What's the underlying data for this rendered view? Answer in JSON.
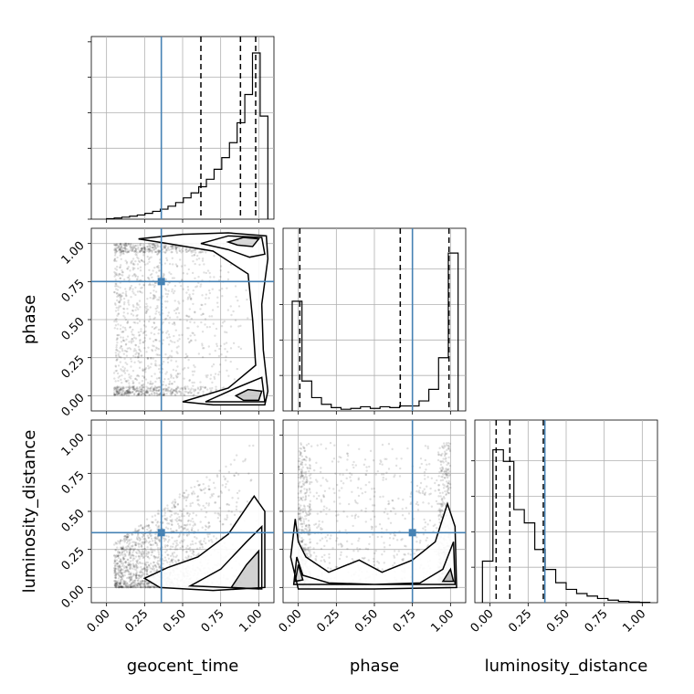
{
  "chart_data": {
    "type": "corner",
    "parameters": [
      "geocent_time",
      "phase",
      "luminosity_distance"
    ],
    "truths": {
      "geocent_time": 0.36,
      "phase": 0.75,
      "luminosity_distance": 0.36
    },
    "truth_color": "#4682b4",
    "axis_range": [
      -0.1,
      1.1
    ],
    "tick_labels": [
      "0.00",
      "0.25",
      "0.50",
      "0.75",
      "1.00"
    ],
    "tick_values": [
      0,
      0.25,
      0.5,
      0.75,
      1.0
    ],
    "grid": true,
    "hist_bins": 24,
    "histograms": [
      {
        "parameter": "geocent_time",
        "quantiles": [
          0.62,
          0.88,
          0.98
        ],
        "counts": [
          0.003,
          0.007,
          0.012,
          0.018,
          0.025,
          0.035,
          0.047,
          0.06,
          0.078,
          0.1,
          0.128,
          0.158,
          0.195,
          0.24,
          0.3,
          0.37,
          0.46,
          0.58,
          0.75,
          1.0,
          0.62
        ]
      },
      {
        "parameter": "phase",
        "quantiles": [
          0.01,
          0.67,
          0.99
        ],
        "counts": [
          0.66,
          0.18,
          0.08,
          0.04,
          0.02,
          0.01,
          0.015,
          0.025,
          0.015,
          0.025,
          0.02,
          0.03,
          0.03,
          0.06,
          0.13,
          0.32,
          0.95
        ]
      },
      {
        "parameter": "luminosity_distance",
        "quantiles": [
          0.04,
          0.13,
          0.35
        ],
        "counts": [
          0.25,
          0.92,
          0.85,
          0.56,
          0.48,
          0.32,
          0.2,
          0.12,
          0.08,
          0.055,
          0.04,
          0.025,
          0.015,
          0.008,
          0.004,
          0.002
        ]
      }
    ],
    "panels_2d": [
      {
        "x": "geocent_time",
        "y": "phase"
      },
      {
        "x": "geocent_time",
        "y": "luminosity_distance"
      },
      {
        "x": "phase",
        "y": "luminosity_distance"
      }
    ]
  }
}
